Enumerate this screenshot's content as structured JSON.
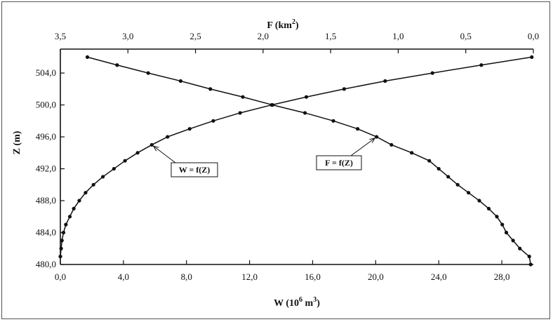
{
  "chart_data": {
    "type": "line",
    "title": "",
    "axes": {
      "x_bottom": {
        "label": "W (10",
        "label_sup": "6",
        "label_tail": " m",
        "label_sup2": "3",
        "label_end": ")",
        "min": 0,
        "max": 30,
        "ticks": [
          0,
          4,
          8,
          12,
          16,
          20,
          24,
          28
        ],
        "tick_labels": [
          "0,0",
          "4,0",
          "8,0",
          "12,0",
          "16,0",
          "20,0",
          "24,0",
          "28,0"
        ]
      },
      "x_top": {
        "label": "F (km",
        "label_sup": "2",
        "label_end": ")",
        "min": 0,
        "max": 3.5,
        "reversed": true,
        "ticks": [
          3.5,
          3.0,
          2.5,
          2.0,
          1.5,
          1.0,
          0.5,
          0.0
        ],
        "tick_labels": [
          "3,5",
          "3,0",
          "2,5",
          "2,0",
          "1,5",
          "1,0",
          "0,5",
          "0,0"
        ]
      },
      "y": {
        "label": "Z (m)",
        "min": 480,
        "max": 507,
        "ticks": [
          480,
          484,
          488,
          492,
          496,
          500,
          504
        ],
        "tick_labels": [
          "480,0",
          "484,0",
          "488,0",
          "492,0",
          "496,0",
          "500,0",
          "504,0"
        ]
      }
    },
    "grid": false,
    "series": [
      {
        "name": "W = f(Z)",
        "axis": "x_bottom",
        "points": [
          {
            "x": 0.0,
            "z": 481
          },
          {
            "x": 0.05,
            "z": 482
          },
          {
            "x": 0.1,
            "z": 483
          },
          {
            "x": 0.2,
            "z": 484
          },
          {
            "x": 0.35,
            "z": 485
          },
          {
            "x": 0.6,
            "z": 486
          },
          {
            "x": 0.85,
            "z": 487
          },
          {
            "x": 1.2,
            "z": 488
          },
          {
            "x": 1.6,
            "z": 489
          },
          {
            "x": 2.1,
            "z": 490
          },
          {
            "x": 2.7,
            "z": 491
          },
          {
            "x": 3.4,
            "z": 492
          },
          {
            "x": 4.1,
            "z": 493
          },
          {
            "x": 4.9,
            "z": 494
          },
          {
            "x": 5.8,
            "z": 495
          },
          {
            "x": 6.8,
            "z": 496
          },
          {
            "x": 8.2,
            "z": 497
          },
          {
            "x": 9.7,
            "z": 498
          },
          {
            "x": 11.4,
            "z": 499
          },
          {
            "x": 13.4,
            "z": 500
          },
          {
            "x": 15.6,
            "z": 501
          },
          {
            "x": 18.0,
            "z": 502
          },
          {
            "x": 20.6,
            "z": 503
          },
          {
            "x": 23.6,
            "z": 504
          },
          {
            "x": 26.7,
            "z": 505
          },
          {
            "x": 29.9,
            "z": 506
          }
        ]
      },
      {
        "name": "F = f(Z)",
        "axis": "x_top",
        "points": [
          {
            "x": 0.02,
            "z": 480
          },
          {
            "x": 0.03,
            "z": 481
          },
          {
            "x": 0.1,
            "z": 482
          },
          {
            "x": 0.15,
            "z": 483
          },
          {
            "x": 0.2,
            "z": 484
          },
          {
            "x": 0.23,
            "z": 485
          },
          {
            "x": 0.27,
            "z": 486
          },
          {
            "x": 0.33,
            "z": 487
          },
          {
            "x": 0.4,
            "z": 488
          },
          {
            "x": 0.48,
            "z": 489
          },
          {
            "x": 0.56,
            "z": 490
          },
          {
            "x": 0.63,
            "z": 491
          },
          {
            "x": 0.7,
            "z": 492
          },
          {
            "x": 0.77,
            "z": 493
          },
          {
            "x": 0.9,
            "z": 494
          },
          {
            "x": 1.05,
            "z": 495
          },
          {
            "x": 1.16,
            "z": 496
          },
          {
            "x": 1.3,
            "z": 497
          },
          {
            "x": 1.48,
            "z": 498
          },
          {
            "x": 1.69,
            "z": 499
          },
          {
            "x": 1.93,
            "z": 500
          },
          {
            "x": 2.15,
            "z": 501
          },
          {
            "x": 2.39,
            "z": 502
          },
          {
            "x": 2.61,
            "z": 503
          },
          {
            "x": 2.85,
            "z": 504
          },
          {
            "x": 3.08,
            "z": 505
          },
          {
            "x": 3.3,
            "z": 506
          }
        ]
      }
    ],
    "annotations": [
      {
        "text": "W = f(Z)",
        "series": 0,
        "point": {
          "x": 5.8,
          "z": 495
        }
      },
      {
        "text": "F = f(Z)",
        "series": 1,
        "point": {
          "x": 1.16,
          "z": 496
        }
      }
    ]
  }
}
